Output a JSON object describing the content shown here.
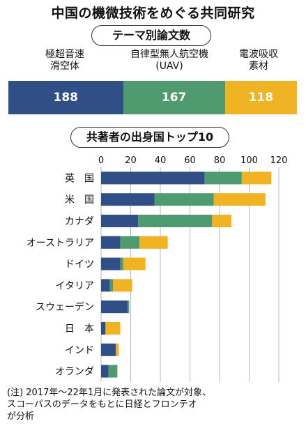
{
  "title": "中国の機微技術をめぐる共同研究",
  "section1": {
    "heading": "テーマ別論文数",
    "labels": [
      {
        "line1": "極超音速",
        "line2": "滑空体"
      },
      {
        "line1": "自律型無人航空機",
        "line2": "(UAV)"
      },
      {
        "line1": "電波吸収",
        "line2": "素材"
      }
    ]
  },
  "section2": {
    "heading": "共著者の出身国トップ10"
  },
  "colors": {
    "hypersonic": "#2f4f86",
    "uav": "#4f9a6e",
    "absorb": "#f0b323",
    "grid": "#b8b8b8"
  },
  "note": {
    "line1": "(注) 2017年～22年1月に発表された論文が対象、",
    "line2": "スコーパスのデータをもとに日経とフロンテオ",
    "line3": "が分析"
  },
  "chart_data": [
    {
      "type": "bar",
      "orientation": "horizontal-stacked",
      "categories": [
        "テーマ別論文数"
      ],
      "series": [
        {
          "name": "極超音速滑空体",
          "values": [
            188
          ]
        },
        {
          "name": "自律型無人航空機(UAV)",
          "values": [
            167
          ]
        },
        {
          "name": "電波吸収素材",
          "values": [
            118
          ]
        }
      ],
      "data_labels": [
        "188",
        "167",
        "118"
      ]
    },
    {
      "type": "bar",
      "orientation": "horizontal-stacked",
      "title": "共著者の出身国トップ10",
      "categories": [
        "英　国",
        "米　国",
        "カナダ",
        "オーストラリア",
        "ドイツ",
        "イタリア",
        "スウェーデン",
        "日　本",
        "インド",
        "オランダ"
      ],
      "series": [
        {
          "name": "極超音速滑空体",
          "values": [
            70,
            36,
            25,
            13,
            13,
            6,
            18,
            3,
            10,
            5
          ]
        },
        {
          "name": "自律型無人航空機(UAV)",
          "values": [
            25,
            40,
            50,
            13,
            2,
            2,
            1,
            0,
            0,
            6
          ]
        },
        {
          "name": "電波吸収素材",
          "values": [
            20,
            35,
            13,
            19,
            15,
            13,
            0,
            10,
            2,
            0
          ]
        }
      ],
      "xlim": [
        0,
        120
      ],
      "xticks": [
        "0",
        "20",
        "40",
        "60",
        "80",
        "100",
        "120"
      ],
      "grid": true
    }
  ]
}
